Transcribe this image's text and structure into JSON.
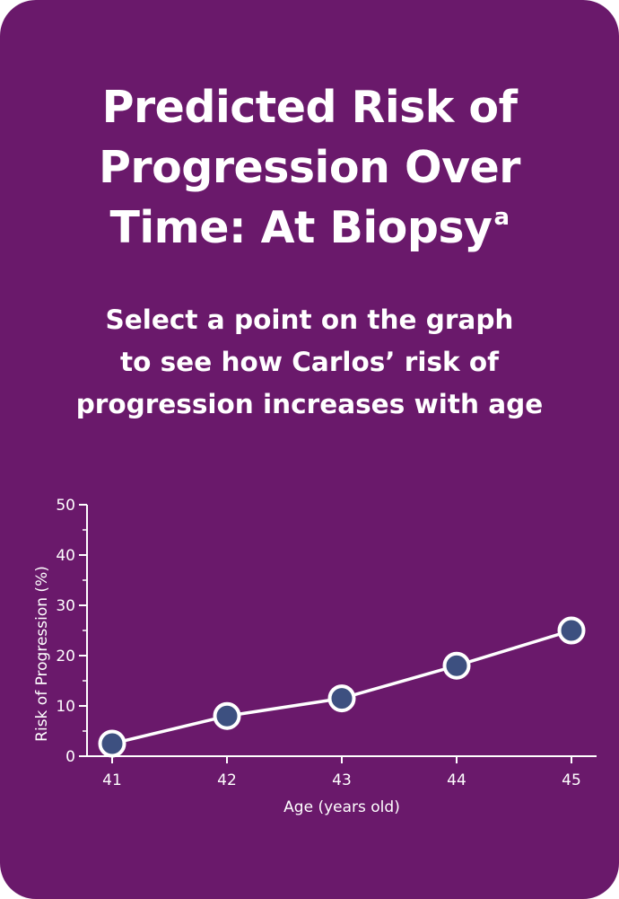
{
  "card": {
    "title_lines": [
      "Predicted Risk of",
      "Progression Over",
      "Time: At Biopsy"
    ],
    "title_superscript": "a",
    "subtitle_lines": [
      "Select a point on the graph",
      "to see how Carlos’ risk of",
      "progression increases with age"
    ]
  },
  "colors": {
    "background": "#6a196b",
    "text": "#ffffff",
    "line": "#ffffff",
    "marker_fill": "#3d5080",
    "marker_stroke": "#ffffff"
  },
  "chart_data": {
    "type": "line",
    "x": [
      41,
      42,
      43,
      44,
      45
    ],
    "series": [
      {
        "values": [
          2.5,
          8,
          11.5,
          18,
          25
        ]
      }
    ],
    "xlabel": "Age (years old)",
    "ylabel": "Risk of Progression (%)",
    "xticks": [
      "41",
      "42",
      "43",
      "44",
      "45"
    ],
    "yticks": [
      "0",
      "10",
      "20",
      "30",
      "40",
      "50"
    ],
    "ylim": [
      0,
      50
    ],
    "grid": false,
    "legend": "none"
  }
}
